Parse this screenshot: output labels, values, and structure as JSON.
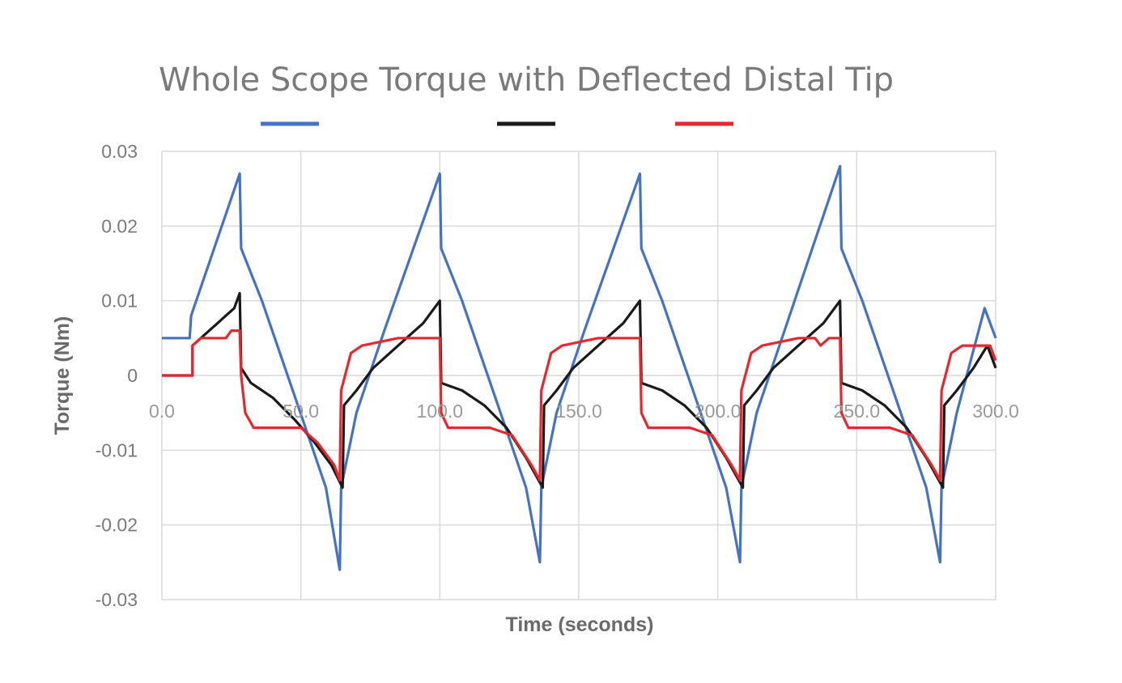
{
  "chart_data": {
    "type": "line",
    "title": "Whole Scope Torque with Deflected Distal Tip",
    "xlabel": "Time (seconds)",
    "ylabel": "Torque (Nm)",
    "xlim": [
      0,
      300
    ],
    "ylim": [
      -0.03,
      0.03
    ],
    "x_ticks": [
      "0.0",
      "50.0",
      "100.0",
      "150.0",
      "200.0",
      "250.0",
      "300.0"
    ],
    "y_ticks": [
      "0.03",
      "0.02",
      "0.01",
      "0",
      "-0.01",
      "-0.02",
      "-0.03"
    ],
    "x_tick_values": [
      0,
      50,
      100,
      150,
      200,
      250,
      300
    ],
    "y_tick_values": [
      0.03,
      0.02,
      0.01,
      0,
      -0.01,
      -0.02,
      -0.03
    ],
    "grid": true,
    "legend_position": "top",
    "series": [
      {
        "color": "#4472c4",
        "points": [
          [
            0,
            0.005
          ],
          [
            10,
            0.005
          ],
          [
            10.5,
            0.008
          ],
          [
            28,
            0.027
          ],
          [
            28.5,
            0.017
          ],
          [
            36,
            0.01
          ],
          [
            48,
            -0.003
          ],
          [
            59,
            -0.015
          ],
          [
            64,
            -0.026
          ],
          [
            64.5,
            -0.015
          ],
          [
            70,
            -0.005
          ],
          [
            80,
            0.006
          ],
          [
            100,
            0.027
          ],
          [
            100.5,
            0.017
          ],
          [
            108,
            0.01
          ],
          [
            120,
            -0.003
          ],
          [
            131,
            -0.015
          ],
          [
            136,
            -0.025
          ],
          [
            136.5,
            -0.015
          ],
          [
            142,
            -0.005
          ],
          [
            152,
            0.006
          ],
          [
            172,
            0.027
          ],
          [
            172.5,
            0.017
          ],
          [
            180,
            0.01
          ],
          [
            192,
            -0.003
          ],
          [
            203,
            -0.015
          ],
          [
            208,
            -0.025
          ],
          [
            208.5,
            -0.015
          ],
          [
            214,
            -0.005
          ],
          [
            224,
            0.006
          ],
          [
            244,
            0.028
          ],
          [
            244.5,
            0.017
          ],
          [
            252,
            0.01
          ],
          [
            264,
            -0.003
          ],
          [
            275,
            -0.015
          ],
          [
            280,
            -0.025
          ],
          [
            280.5,
            -0.015
          ],
          [
            286,
            -0.005
          ],
          [
            296,
            0.009
          ],
          [
            300,
            0.005
          ]
        ]
      },
      {
        "color": "#1a1a1a",
        "points": [
          [
            0,
            0
          ],
          [
            11,
            0
          ],
          [
            11,
            0.004
          ],
          [
            14,
            0.005
          ],
          [
            17,
            0.006
          ],
          [
            20,
            0.007
          ],
          [
            23,
            0.008
          ],
          [
            26,
            0.009
          ],
          [
            28,
            0.011
          ],
          [
            28.5,
            0.001
          ],
          [
            32,
            -0.001
          ],
          [
            40,
            -0.003
          ],
          [
            48,
            -0.006
          ],
          [
            55,
            -0.009
          ],
          [
            61,
            -0.012
          ],
          [
            65,
            -0.015
          ],
          [
            65.5,
            -0.004
          ],
          [
            70,
            -0.002
          ],
          [
            76,
            0.001
          ],
          [
            82,
            0.003
          ],
          [
            88,
            0.005
          ],
          [
            94,
            0.007
          ],
          [
            100,
            0.01
          ],
          [
            100.5,
            -0.001
          ],
          [
            108,
            -0.002
          ],
          [
            116,
            -0.004
          ],
          [
            124,
            -0.007
          ],
          [
            131,
            -0.011
          ],
          [
            137,
            -0.015
          ],
          [
            137.5,
            -0.004
          ],
          [
            142,
            -0.002
          ],
          [
            148,
            0.001
          ],
          [
            154,
            0.003
          ],
          [
            160,
            0.005
          ],
          [
            166,
            0.007
          ],
          [
            172,
            0.01
          ],
          [
            172.5,
            -0.001
          ],
          [
            180,
            -0.002
          ],
          [
            188,
            -0.004
          ],
          [
            196,
            -0.007
          ],
          [
            203,
            -0.011
          ],
          [
            209,
            -0.015
          ],
          [
            209.5,
            -0.004
          ],
          [
            214,
            -0.002
          ],
          [
            220,
            0.001
          ],
          [
            226,
            0.003
          ],
          [
            232,
            0.005
          ],
          [
            238,
            0.007
          ],
          [
            244,
            0.01
          ],
          [
            244.5,
            -0.001
          ],
          [
            252,
            -0.002
          ],
          [
            260,
            -0.004
          ],
          [
            268,
            -0.007
          ],
          [
            275,
            -0.011
          ],
          [
            281,
            -0.015
          ],
          [
            281.5,
            -0.004
          ],
          [
            286,
            -0.002
          ],
          [
            292,
            0.001
          ],
          [
            297,
            0.004
          ],
          [
            300,
            0.001
          ]
        ]
      },
      {
        "color": "#e8262d",
        "points": [
          [
            0,
            0
          ],
          [
            11,
            0
          ],
          [
            11,
            0.004
          ],
          [
            14,
            0.005
          ],
          [
            23,
            0.005
          ],
          [
            25,
            0.006
          ],
          [
            28,
            0.006
          ],
          [
            28.5,
            0
          ],
          [
            30,
            -0.005
          ],
          [
            33,
            -0.007
          ],
          [
            46,
            -0.007
          ],
          [
            50,
            -0.007
          ],
          [
            56,
            -0.009
          ],
          [
            62,
            -0.012
          ],
          [
            64,
            -0.014
          ],
          [
            64.5,
            -0.002
          ],
          [
            68,
            0.003
          ],
          [
            72,
            0.004
          ],
          [
            85,
            0.005
          ],
          [
            100,
            0.005
          ],
          [
            100.5,
            -0.005
          ],
          [
            103,
            -0.007
          ],
          [
            118,
            -0.007
          ],
          [
            126,
            -0.008
          ],
          [
            133,
            -0.012
          ],
          [
            136,
            -0.014
          ],
          [
            136.5,
            -0.002
          ],
          [
            140,
            0.003
          ],
          [
            144,
            0.004
          ],
          [
            157,
            0.005
          ],
          [
            172,
            0.005
          ],
          [
            172.5,
            -0.005
          ],
          [
            175,
            -0.007
          ],
          [
            190,
            -0.007
          ],
          [
            198,
            -0.008
          ],
          [
            205,
            -0.012
          ],
          [
            208,
            -0.014
          ],
          [
            208.5,
            -0.002
          ],
          [
            212,
            0.003
          ],
          [
            216,
            0.004
          ],
          [
            229,
            0.005
          ],
          [
            235,
            0.005
          ],
          [
            237,
            0.004
          ],
          [
            240,
            0.005
          ],
          [
            244,
            0.005
          ],
          [
            244.5,
            -0.005
          ],
          [
            247,
            -0.007
          ],
          [
            262,
            -0.007
          ],
          [
            270,
            -0.008
          ],
          [
            277,
            -0.012
          ],
          [
            280,
            -0.014
          ],
          [
            280.5,
            -0.002
          ],
          [
            284,
            0.003
          ],
          [
            288,
            0.004
          ],
          [
            298,
            0.004
          ],
          [
            300,
            0.002
          ]
        ]
      }
    ]
  }
}
